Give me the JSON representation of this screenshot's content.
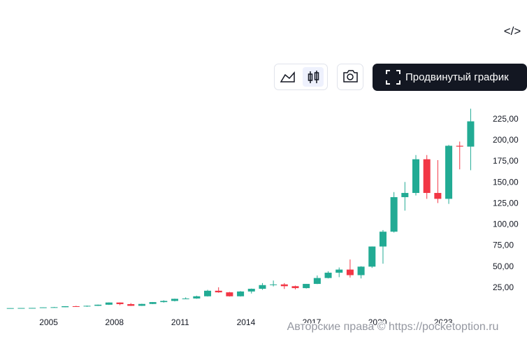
{
  "toolbar": {
    "embed": "</>",
    "advanced_chart": "Продвинутый график"
  },
  "chart_data": {
    "type": "candlestick",
    "up_color": "#22ab94",
    "down_color": "#f23645",
    "x": [
      2003.0,
      2003.5,
      2004.0,
      2004.5,
      2005.0,
      2005.5,
      2006.0,
      2006.5,
      2007.0,
      2007.5,
      2008.0,
      2008.5,
      2009.0,
      2009.5,
      2010.0,
      2010.5,
      2011.0,
      2011.5,
      2012.0,
      2012.5,
      2013.0,
      2013.5,
      2014.0,
      2014.5,
      2015.0,
      2015.5,
      2016.0,
      2016.5,
      2017.0,
      2017.5,
      2018.0,
      2018.5,
      2019.0,
      2019.5,
      2020.0,
      2020.5,
      2021.0,
      2021.5,
      2022.0,
      2022.5,
      2023.0,
      2023.5,
      2024.0
    ],
    "open": [
      0.25,
      0.27,
      0.38,
      0.48,
      1.15,
      1.35,
      2.5,
      2.3,
      3.0,
      4.3,
      6.9,
      5.0,
      3.0,
      5.2,
      7.4,
      8.8,
      11.3,
      11.7,
      14.3,
      20.9,
      19.0,
      14.3,
      20.0,
      23.2,
      27.6,
      28.4,
      26.3,
      24.0,
      29.0,
      36.0,
      42.3,
      46.0,
      39.4,
      49.5,
      73.4,
      91,
      132,
      137,
      177,
      137,
      130,
      193,
      192
    ],
    "high": [
      0.3,
      0.4,
      0.5,
      1.2,
      1.7,
      2.6,
      3.0,
      3.3,
      4.5,
      7.1,
      7.0,
      6.2,
      5.5,
      7.5,
      9.6,
      11.5,
      13.0,
      15.0,
      22.0,
      25.0,
      19.5,
      20.5,
      23.5,
      30.0,
      33.0,
      30.0,
      27.0,
      29.0,
      39.0,
      44.0,
      48.5,
      58.0,
      50.0,
      73.5,
      93,
      138,
      150,
      182,
      182,
      176,
      194,
      198,
      237
    ],
    "low": [
      0.2,
      0.25,
      0.36,
      0.45,
      1.1,
      1.3,
      1.8,
      1.8,
      2.8,
      4.0,
      3.7,
      2.8,
      2.8,
      5.0,
      6.8,
      8.2,
      10.8,
      11.3,
      14.0,
      18.5,
      14.0,
      14.0,
      17.6,
      22.0,
      26.0,
      23.0,
      22.5,
      23.5,
      28.8,
      35.5,
      37.0,
      36.5,
      35.5,
      48.0,
      53,
      90,
      116,
      134,
      130,
      125,
      124,
      165,
      164
    ],
    "close": [
      0.27,
      0.38,
      0.48,
      1.15,
      1.35,
      2.5,
      2.3,
      3.0,
      4.3,
      6.9,
      5.0,
      3.0,
      5.2,
      7.4,
      8.8,
      11.3,
      11.7,
      14.3,
      20.9,
      19.0,
      14.3,
      20.0,
      23.2,
      27.6,
      28.4,
      26.3,
      24.0,
      29.0,
      36.0,
      42.3,
      46.0,
      39.4,
      49.5,
      73.4,
      91,
      132,
      137,
      177,
      137,
      130,
      193,
      192,
      222
    ],
    "xlim": [
      2002.78,
      2024.97
    ],
    "xticks": [
      2005,
      2008,
      2011,
      2014,
      2017,
      2020,
      2023
    ],
    "ylim": [
      0,
      254
    ],
    "yticks": [
      {
        "value": 25,
        "label": "25,00"
      },
      {
        "value": 50,
        "label": "50,00"
      },
      {
        "value": 75,
        "label": "75,00"
      },
      {
        "value": 100,
        "label": "100,00"
      },
      {
        "value": 125,
        "label": "125,00"
      },
      {
        "value": 150,
        "label": "150,00"
      },
      {
        "value": 175,
        "label": "175,00"
      },
      {
        "value": 200,
        "label": "200,00"
      },
      {
        "value": 225,
        "label": "225,00"
      }
    ],
    "watermark": "Авторские права © https://pocketoption.ru"
  }
}
